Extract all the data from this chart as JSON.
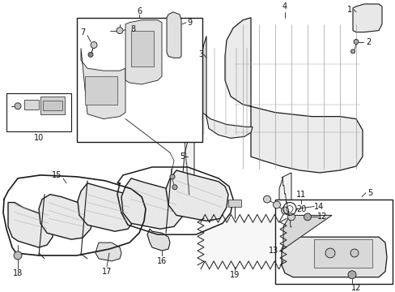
{
  "bg": "#ffffff",
  "lc": "#1a1a1a",
  "fig_w": 4.89,
  "fig_h": 3.6,
  "dpi": 100,
  "fs": 7.0
}
